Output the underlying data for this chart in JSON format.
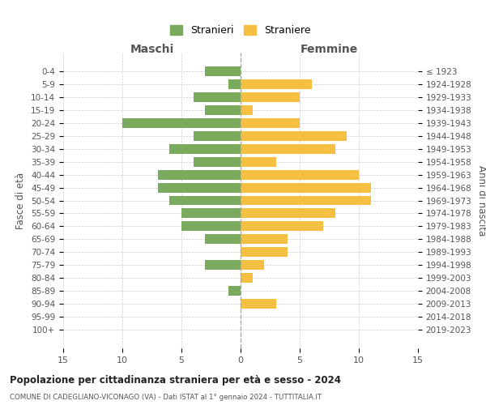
{
  "age_groups": [
    "0-4",
    "5-9",
    "10-14",
    "15-19",
    "20-24",
    "25-29",
    "30-34",
    "35-39",
    "40-44",
    "45-49",
    "50-54",
    "55-59",
    "60-64",
    "65-69",
    "70-74",
    "75-79",
    "80-84",
    "85-89",
    "90-94",
    "95-99",
    "100+"
  ],
  "birth_years": [
    "2019-2023",
    "2014-2018",
    "2009-2013",
    "2004-2008",
    "1999-2003",
    "1994-1998",
    "1989-1993",
    "1984-1988",
    "1979-1983",
    "1974-1978",
    "1969-1973",
    "1964-1968",
    "1959-1963",
    "1954-1958",
    "1949-1953",
    "1944-1948",
    "1939-1943",
    "1934-1938",
    "1929-1933",
    "1924-1928",
    "≤ 1923"
  ],
  "maschi": [
    3,
    1,
    4,
    3,
    10,
    4,
    6,
    4,
    7,
    7,
    6,
    5,
    5,
    3,
    0,
    3,
    0,
    1,
    0,
    0,
    0
  ],
  "femmine": [
    0,
    6,
    5,
    1,
    5,
    9,
    8,
    3,
    10,
    11,
    11,
    8,
    7,
    4,
    4,
    2,
    1,
    0,
    3,
    0,
    0
  ],
  "maschi_color": "#7aaa5e",
  "femmine_color": "#f5bf42",
  "background_color": "#ffffff",
  "grid_color": "#cccccc",
  "title": "Popolazione per cittadinanza straniera per età e sesso - 2024",
  "subtitle": "COMUNE DI CADEGLIANO-VICONAGO (VA) - Dati ISTAT al 1° gennaio 2024 - TUTTITALIA.IT",
  "xlabel_left": "Maschi",
  "xlabel_right": "Femmine",
  "ylabel_left": "Fasce di età",
  "ylabel_right": "Anni di nascita",
  "legend_maschi": "Stranieri",
  "legend_femmine": "Straniere",
  "xlim": 15
}
